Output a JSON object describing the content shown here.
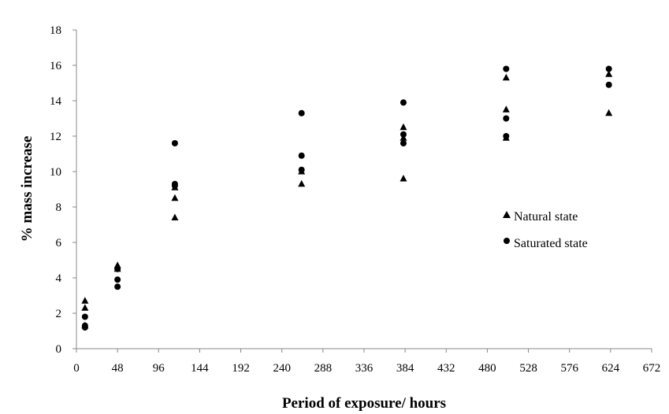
{
  "chart_data": {
    "type": "scatter",
    "title": "",
    "xlabel": "Period of exposure/ hours",
    "ylabel": "% mass increase",
    "xlim": [
      0,
      672
    ],
    "ylim": [
      0,
      18
    ],
    "x_ticks": [
      "0",
      "48",
      "96",
      "144",
      "192",
      "240",
      "288",
      "336",
      "384",
      "432",
      "480",
      "528",
      "576",
      "624",
      "672"
    ],
    "y_ticks": [
      "0",
      "2",
      "4",
      "6",
      "8",
      "10",
      "12",
      "14",
      "16",
      "18"
    ],
    "grid": false,
    "legend_position": "right",
    "series": [
      {
        "name": "Natural state",
        "marker": "triangle",
        "color": "#000000",
        "points": [
          [
            10,
            2.7
          ],
          [
            10,
            2.3
          ],
          [
            10,
            1.3
          ],
          [
            48,
            4.7
          ],
          [
            48,
            4.5
          ],
          [
            115,
            9.1
          ],
          [
            115,
            8.5
          ],
          [
            115,
            7.4
          ],
          [
            263,
            10.0
          ],
          [
            263,
            9.3
          ],
          [
            382,
            12.5
          ],
          [
            382,
            9.6
          ],
          [
            382,
            11.9
          ],
          [
            502,
            15.3
          ],
          [
            502,
            13.5
          ],
          [
            502,
            11.9
          ],
          [
            622,
            15.5
          ],
          [
            622,
            13.3
          ]
        ]
      },
      {
        "name": "Saturated state",
        "marker": "circle",
        "color": "#000000",
        "points": [
          [
            10,
            1.8
          ],
          [
            10,
            1.3
          ],
          [
            10,
            1.2
          ],
          [
            48,
            4.5
          ],
          [
            48,
            3.9
          ],
          [
            48,
            3.5
          ],
          [
            115,
            11.6
          ],
          [
            115,
            9.3
          ],
          [
            115,
            9.2
          ],
          [
            263,
            13.3
          ],
          [
            263,
            10.9
          ],
          [
            263,
            10.1
          ],
          [
            382,
            13.9
          ],
          [
            382,
            12.1
          ],
          [
            382,
            11.6
          ],
          [
            502,
            15.8
          ],
          [
            502,
            13.0
          ],
          [
            502,
            12.0
          ],
          [
            622,
            15.8
          ],
          [
            622,
            14.9
          ]
        ]
      }
    ]
  }
}
